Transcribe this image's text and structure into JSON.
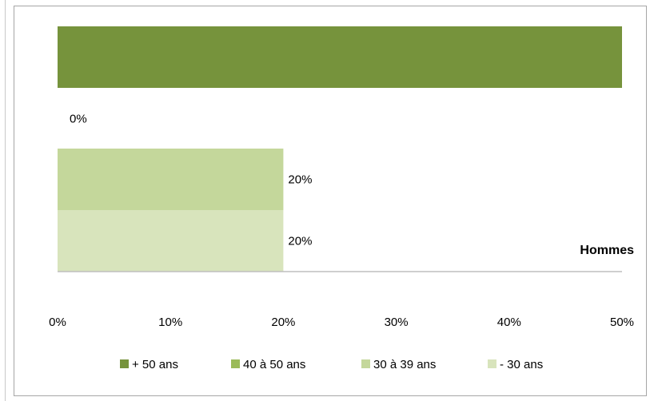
{
  "chart_data": {
    "type": "bar",
    "orientation": "horizontal",
    "stacked": true,
    "category": "Hommes",
    "x_ticks": [
      "0%",
      "10%",
      "20%",
      "30%",
      "40%",
      "50%"
    ],
    "xlim": [
      0,
      50
    ],
    "grid": false,
    "legend_position": "bottom",
    "series": [
      {
        "name": "+ 50 ans",
        "value": 50,
        "color": "#76933c",
        "label": ""
      },
      {
        "name": "40 à 50 ans",
        "value": 0,
        "color": "#9bbb59",
        "label": "0%"
      },
      {
        "name": "30 à 39 ans",
        "value": 20,
        "color": "#c4d79b",
        "label": "20%"
      },
      {
        "name": "- 30 ans",
        "value": 20,
        "color": "#d8e4bc",
        "label": "20%"
      }
    ]
  }
}
